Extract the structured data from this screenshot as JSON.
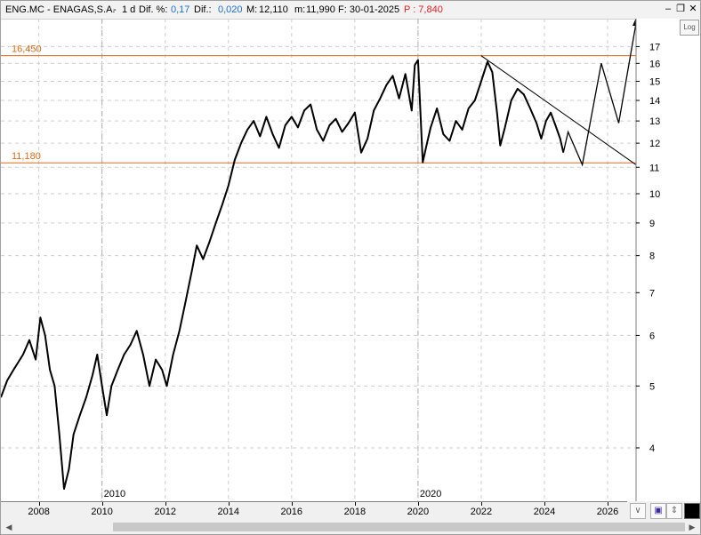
{
  "window": {
    "symbol": "ENG.MC - ENAGAS,S.A.",
    "separator": "-",
    "timeframe": "1 d",
    "dif_pct_label": "Dif. %:",
    "dif_pct_value": "0,17",
    "dif_label": "Dif.:",
    "dif_value": "0,020",
    "max_label": "M:",
    "max_value": "12,110",
    "min_label": "m:",
    "min_value": "11,990",
    "date_label": "F: 30-01-2025",
    "price_label": "P : 7,840",
    "colors": {
      "accent_blue": "#1f6fd1",
      "price_red": "#e02020",
      "level_orange": "#e06a1a"
    }
  },
  "toolbar": {
    "log_label": "Log"
  },
  "controls": {
    "minimize_icon": "minimize-icon",
    "restore_icon": "restore-icon",
    "close_icon": "close-icon",
    "save_icon": "save-icon",
    "pin_icon": "pin-icon",
    "color_icon": "color-swatch-icon",
    "collapse_icon": "chevron-down-icon"
  },
  "chart_data": {
    "type": "line",
    "scale": "log",
    "x_axis_labels": [
      "2008",
      "2010",
      "2012",
      "2014",
      "2016",
      "2018",
      "2020",
      "2022",
      "2024",
      "2026"
    ],
    "x_range": [
      2006.8,
      2026.9
    ],
    "y_axis_labels": [
      4,
      5,
      6,
      7,
      8,
      9,
      10,
      11,
      12,
      13,
      14,
      15,
      16,
      17
    ],
    "y_range": [
      3.3,
      18.8
    ],
    "horizontal_levels": [
      {
        "label": "16,450",
        "value": 16.45,
        "color": "#e06a1a"
      },
      {
        "label": "11,180",
        "value": 11.18,
        "color": "#e06a1a"
      }
    ],
    "period_markers": [
      {
        "label": "2010",
        "x": 2010
      },
      {
        "label": "2020",
        "x": 2020
      }
    ],
    "trendline": {
      "from": [
        2022.0,
        16.45
      ],
      "to": [
        2026.9,
        11.1
      ]
    },
    "projection": [
      [
        2024.6,
        11.6
      ],
      [
        2024.75,
        12.5
      ],
      [
        2025.2,
        11.1
      ],
      [
        2025.8,
        16.0
      ],
      [
        2026.35,
        12.9
      ],
      [
        2026.9,
        18.5
      ]
    ],
    "price": [
      [
        2006.8,
        4.8
      ],
      [
        2007.0,
        5.1
      ],
      [
        2007.2,
        5.3
      ],
      [
        2007.5,
        5.6
      ],
      [
        2007.7,
        5.9
      ],
      [
        2007.9,
        5.5
      ],
      [
        2008.05,
        6.4
      ],
      [
        2008.2,
        6.0
      ],
      [
        2008.35,
        5.3
      ],
      [
        2008.5,
        5.0
      ],
      [
        2008.65,
        4.2
      ],
      [
        2008.8,
        3.45
      ],
      [
        2008.95,
        3.7
      ],
      [
        2009.1,
        4.2
      ],
      [
        2009.3,
        4.5
      ],
      [
        2009.5,
        4.8
      ],
      [
        2009.7,
        5.2
      ],
      [
        2009.85,
        5.6
      ],
      [
        2010.0,
        5.0
      ],
      [
        2010.15,
        4.5
      ],
      [
        2010.3,
        5.0
      ],
      [
        2010.5,
        5.3
      ],
      [
        2010.7,
        5.6
      ],
      [
        2010.9,
        5.8
      ],
      [
        2011.1,
        6.1
      ],
      [
        2011.3,
        5.6
      ],
      [
        2011.5,
        5.0
      ],
      [
        2011.7,
        5.5
      ],
      [
        2011.9,
        5.3
      ],
      [
        2012.05,
        5.0
      ],
      [
        2012.25,
        5.6
      ],
      [
        2012.45,
        6.1
      ],
      [
        2012.65,
        6.8
      ],
      [
        2012.85,
        7.6
      ],
      [
        2013.0,
        8.3
      ],
      [
        2013.2,
        7.9
      ],
      [
        2013.4,
        8.4
      ],
      [
        2013.6,
        9.0
      ],
      [
        2013.8,
        9.6
      ],
      [
        2014.0,
        10.3
      ],
      [
        2014.2,
        11.3
      ],
      [
        2014.4,
        12.0
      ],
      [
        2014.6,
        12.6
      ],
      [
        2014.8,
        13.0
      ],
      [
        2015.0,
        12.3
      ],
      [
        2015.2,
        13.2
      ],
      [
        2015.4,
        12.4
      ],
      [
        2015.6,
        11.8
      ],
      [
        2015.8,
        12.8
      ],
      [
        2016.0,
        13.2
      ],
      [
        2016.2,
        12.7
      ],
      [
        2016.4,
        13.5
      ],
      [
        2016.6,
        13.8
      ],
      [
        2016.8,
        12.6
      ],
      [
        2017.0,
        12.1
      ],
      [
        2017.2,
        12.8
      ],
      [
        2017.4,
        13.1
      ],
      [
        2017.6,
        12.5
      ],
      [
        2017.8,
        12.9
      ],
      [
        2018.0,
        13.4
      ],
      [
        2018.2,
        11.6
      ],
      [
        2018.4,
        12.2
      ],
      [
        2018.6,
        13.5
      ],
      [
        2018.8,
        14.1
      ],
      [
        2019.0,
        14.8
      ],
      [
        2019.2,
        15.3
      ],
      [
        2019.4,
        14.1
      ],
      [
        2019.6,
        15.4
      ],
      [
        2019.8,
        13.5
      ],
      [
        2019.9,
        15.9
      ],
      [
        2020.0,
        16.2
      ],
      [
        2020.15,
        11.2
      ],
      [
        2020.25,
        11.8
      ],
      [
        2020.4,
        12.7
      ],
      [
        2020.6,
        13.6
      ],
      [
        2020.8,
        12.4
      ],
      [
        2021.0,
        12.1
      ],
      [
        2021.2,
        13.0
      ],
      [
        2021.4,
        12.6
      ],
      [
        2021.6,
        13.6
      ],
      [
        2021.8,
        14.0
      ],
      [
        2022.0,
        15.0
      ],
      [
        2022.2,
        16.1
      ],
      [
        2022.35,
        15.5
      ],
      [
        2022.5,
        13.4
      ],
      [
        2022.6,
        11.9
      ],
      [
        2022.75,
        12.7
      ],
      [
        2022.95,
        14.0
      ],
      [
        2023.15,
        14.6
      ],
      [
        2023.35,
        14.3
      ],
      [
        2023.55,
        13.6
      ],
      [
        2023.75,
        12.9
      ],
      [
        2023.9,
        12.2
      ],
      [
        2024.05,
        13.0
      ],
      [
        2024.2,
        13.4
      ],
      [
        2024.35,
        12.8
      ],
      [
        2024.5,
        12.2
      ],
      [
        2024.6,
        11.6
      ]
    ]
  }
}
